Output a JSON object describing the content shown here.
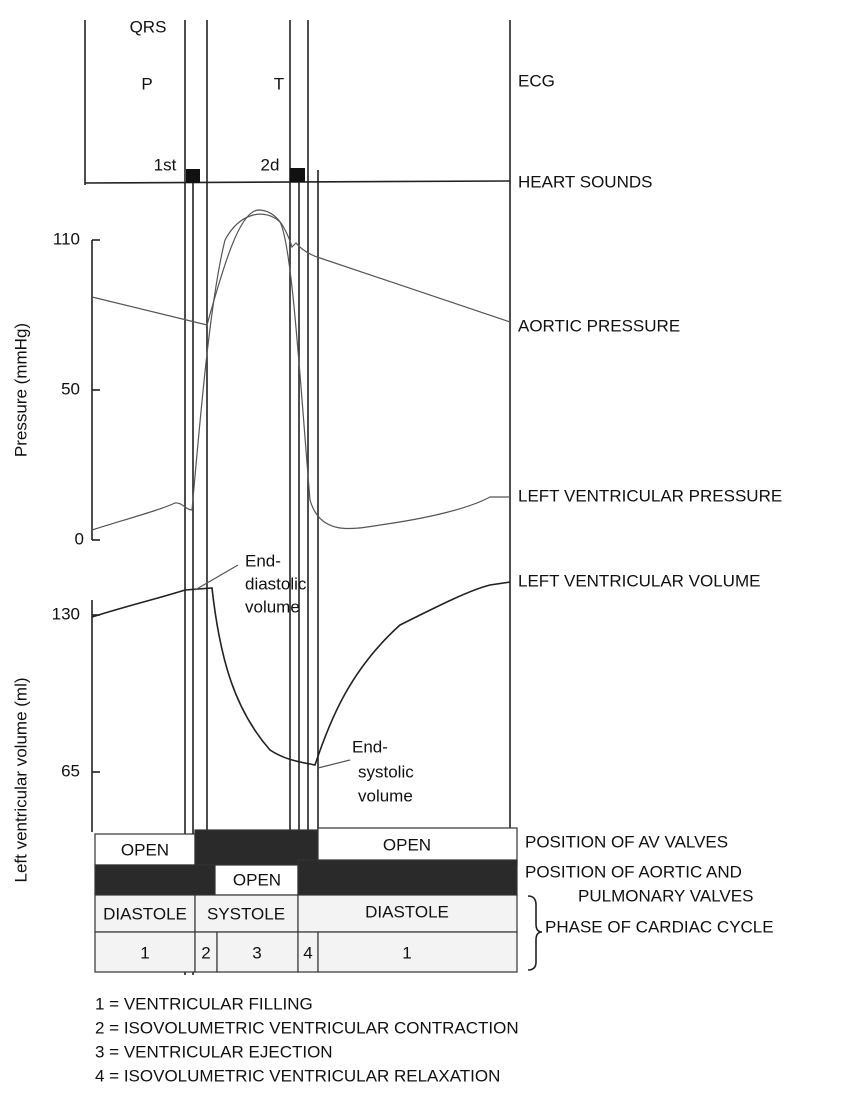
{
  "waveform_labels": {
    "qrs": "QRS",
    "p": "P",
    "t": "T",
    "first_sound": "1st",
    "second_sound": "2d"
  },
  "traces": {
    "ecg": "ECG",
    "heart_sounds": "HEART SOUNDS",
    "aortic_pressure": "AORTIC PRESSURE",
    "lv_pressure": "LEFT VENTRICULAR PRESSURE",
    "lv_volume": "LEFT VENTRICULAR VOLUME",
    "av_valves": "POSITION OF AV VALVES",
    "aortic_valves_1": "POSITION OF AORTIC AND",
    "aortic_valves_2": "PULMONARY VALVES",
    "phase": "PHASE OF CARDIAC CYCLE"
  },
  "pressure_axis": {
    "title": "Pressure (mmHg)",
    "ticks": [
      "110",
      "50",
      "0"
    ]
  },
  "volume_axis": {
    "title": "Left ventricular volume (ml)",
    "ticks": [
      "130",
      "65"
    ]
  },
  "annotations": {
    "end_diastolic": [
      "End-",
      "diastolic",
      "volume"
    ],
    "end_systolic": [
      "End-",
      "systolic",
      "volume"
    ]
  },
  "av_row": [
    "OPEN",
    "OPEN"
  ],
  "aortic_row": [
    "OPEN"
  ],
  "phase_row": [
    "DIASTOLE",
    "SYSTOLE",
    "DIASTOLE"
  ],
  "number_row": [
    "1",
    "2",
    "3",
    "4",
    "1"
  ],
  "legend": [
    "1 = VENTRICULAR FILLING",
    "2 = ISOVOLUMETRIC VENTRICULAR CONTRACTION",
    "3 = VENTRICULAR EJECTION",
    "4 = ISOVOLUMETRIC VENTRICULAR RELAXATION"
  ]
}
